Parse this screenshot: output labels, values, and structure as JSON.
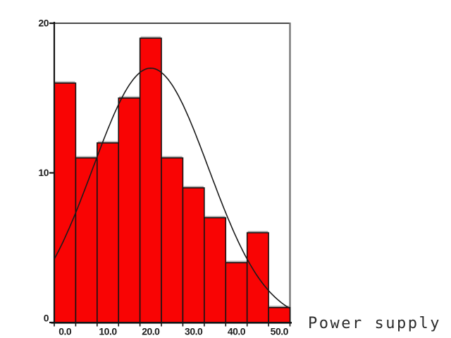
{
  "chart_data": {
    "type": "bar",
    "subtype": "histogram-with-normal-curve",
    "title": "",
    "xlabel": "Power supply",
    "ylabel": "",
    "bin_width": 5,
    "bin_centers": [
      0,
      5,
      10,
      15,
      20,
      25,
      30,
      35,
      40,
      45,
      50
    ],
    "values": [
      16,
      11,
      12,
      15,
      19,
      11,
      9,
      7,
      4,
      6,
      1
    ],
    "x_tick_labels": [
      "0.0",
      "10.0",
      "20.0",
      "30.0",
      "40.0",
      "50.0"
    ],
    "x_tick_values": [
      0,
      10,
      20,
      30,
      40,
      50
    ],
    "y_tick_labels": [
      "0",
      "10",
      "20"
    ],
    "y_tick_values": [
      0,
      10,
      20
    ],
    "xlim": [
      -2.5,
      52.5
    ],
    "ylim": [
      0,
      20
    ],
    "grid": "off",
    "legend": "none",
    "normal_curve": {
      "mean": 20,
      "sd": 13.5,
      "peak": 17
    },
    "colors": {
      "bar_fill": "#f90404",
      "bar_border": "#141414",
      "bar_top_highlight": "#b5b5b5",
      "curve": "#1b1b1b",
      "axis": "#141414",
      "frame_top": "#4a4a4a",
      "frame_right": "#707070",
      "background": "#ffffff"
    }
  }
}
